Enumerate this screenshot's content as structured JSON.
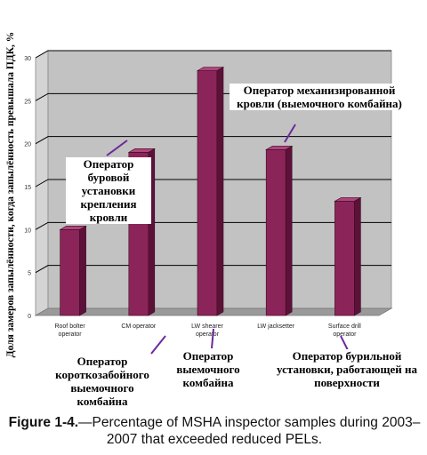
{
  "chart_data": {
    "type": "bar",
    "ylabel": "Доля замеров запылённости, когда запылённость превышала ПДК, %",
    "ylim": [
      0,
      30
    ],
    "yticks": [
      0,
      5,
      10,
      15,
      20,
      25,
      30
    ],
    "grid": true,
    "categories": [
      "Roof bolter operator",
      "CM operator",
      "LW shearer operator",
      "LW jacksetter",
      "Surface drill operator"
    ],
    "values": [
      10,
      19,
      28.5,
      19.3,
      13.3
    ],
    "colors": {
      "bar": "#8b2559",
      "bar_side": "#5c1238",
      "bar_top": "#b0457b",
      "line": "#6a2a9a"
    },
    "annotations": [
      {
        "id": "roof",
        "text": "Оператор буровой установки крепления кровли"
      },
      {
        "id": "cm",
        "text": "Оператор короткозабойного выемочного комбайна"
      },
      {
        "id": "shearer",
        "text": "Оператор выемочного комбайна"
      },
      {
        "id": "jack",
        "text": "Оператор механизированной кровли (выемочного комбайна)"
      },
      {
        "id": "drill",
        "text": "Оператор бурильной установки, работающей на поверхности"
      }
    ]
  },
  "caption": {
    "label": "Figure 1-4.",
    "text": "—Percentage of MSHA inspector samples during 2003–2007 that exceeded reduced PELs."
  }
}
